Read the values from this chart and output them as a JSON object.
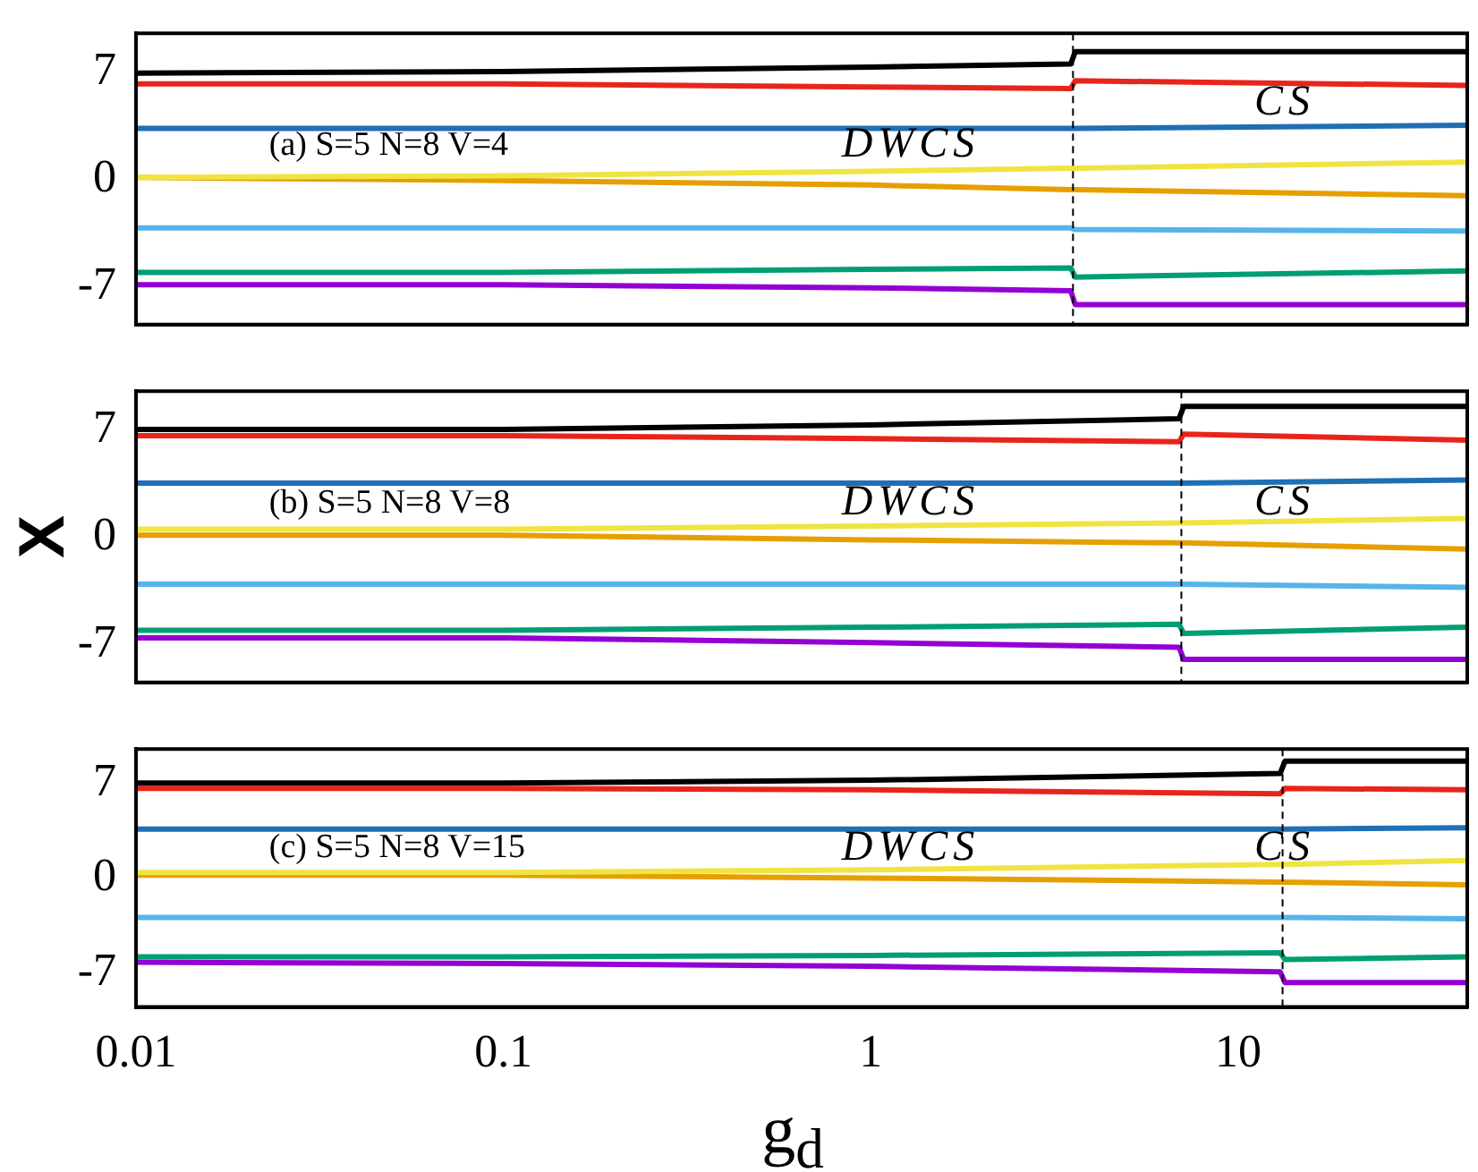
{
  "chart_data": [
    {
      "type": "line",
      "xlim": [
        0.01,
        42
      ],
      "ylim": [
        -9.5,
        9.5
      ],
      "yticks": [
        -7,
        0,
        7
      ],
      "log": "x",
      "grid": false,
      "legend": false,
      "marker": "none",
      "line_style": "solid",
      "tick_labels": "y",
      "series": [
        {
          "color": "#000000",
          "x": [
            0.01,
            0.1,
            1,
            3.5,
            3.6,
            42
          ],
          "values": [
            6.9,
            7.0,
            7.3,
            7.5,
            8.3,
            8.3
          ]
        },
        {
          "color": "#e8251b",
          "x": [
            0.01,
            0.1,
            1,
            3.5,
            3.6,
            42
          ],
          "values": [
            6.2,
            6.2,
            6.0,
            5.9,
            6.4,
            6.1
          ]
        },
        {
          "color": "#1f6fb4",
          "x": [
            0.01,
            0.1,
            1,
            3.5,
            3.6,
            42
          ],
          "values": [
            3.3,
            3.3,
            3.3,
            3.3,
            3.3,
            3.5
          ]
        },
        {
          "color": "#f0e442",
          "x": [
            0.01,
            0.1,
            1,
            3.5,
            3.6,
            42
          ],
          "values": [
            0.1,
            0.2,
            0.5,
            0.7,
            0.7,
            1.1
          ]
        },
        {
          "color": "#e69f00",
          "x": [
            0.01,
            0.1,
            1,
            3.5,
            3.6,
            42
          ],
          "values": [
            0.1,
            -0.1,
            -0.4,
            -0.7,
            -0.7,
            -1.1
          ]
        },
        {
          "color": "#56b4e9",
          "x": [
            0.01,
            0.1,
            1,
            3.5,
            3.6,
            42
          ],
          "values": [
            -3.2,
            -3.2,
            -3.2,
            -3.2,
            -3.3,
            -3.4
          ]
        },
        {
          "color": "#009e73",
          "x": [
            0.01,
            0.1,
            1,
            3.5,
            3.6,
            42
          ],
          "values": [
            -6.1,
            -6.1,
            -5.9,
            -5.8,
            -6.4,
            -6.0
          ]
        },
        {
          "color": "#9400d3",
          "x": [
            0.01,
            0.1,
            1,
            3.5,
            3.6,
            42
          ],
          "values": [
            -6.9,
            -6.9,
            -7.1,
            -7.3,
            -8.2,
            -8.2
          ]
        }
      ],
      "ref_lines": [
        {
          "axis": "x",
          "value": 3.55,
          "color": "#000000",
          "line_style": "dashed"
        }
      ],
      "annotations": [
        "(a) S=5 N=8 V=4",
        "DWCS",
        "CS"
      ]
    },
    {
      "type": "line",
      "xlim": [
        0.01,
        42
      ],
      "ylim": [
        -9.5,
        9.5
      ],
      "yticks": [
        -7,
        0,
        7
      ],
      "log": "x",
      "grid": false,
      "legend": false,
      "marker": "none",
      "line_style": "solid",
      "tick_labels": "y",
      "ylabel": "X",
      "series": [
        {
          "color": "#000000",
          "x": [
            0.01,
            0.1,
            1,
            6.9,
            7.1,
            42
          ],
          "values": [
            7.0,
            7.0,
            7.3,
            7.7,
            8.5,
            8.5
          ]
        },
        {
          "color": "#e8251b",
          "x": [
            0.01,
            0.1,
            1,
            6.9,
            7.1,
            42
          ],
          "values": [
            6.6,
            6.6,
            6.4,
            6.2,
            6.7,
            6.3
          ]
        },
        {
          "color": "#1f6fb4",
          "x": [
            0.01,
            0.1,
            1,
            6.9,
            7.1,
            42
          ],
          "values": [
            3.5,
            3.5,
            3.5,
            3.5,
            3.5,
            3.7
          ]
        },
        {
          "color": "#f0e442",
          "x": [
            0.01,
            0.1,
            1,
            6.9,
            7.1,
            42
          ],
          "values": [
            0.5,
            0.5,
            0.7,
            0.9,
            0.9,
            1.2
          ]
        },
        {
          "color": "#e69f00",
          "x": [
            0.01,
            0.1,
            1,
            6.9,
            7.1,
            42
          ],
          "values": [
            0.1,
            0.1,
            -0.2,
            -0.4,
            -0.4,
            -0.8
          ]
        },
        {
          "color": "#56b4e9",
          "x": [
            0.01,
            0.1,
            1,
            6.9,
            7.1,
            42
          ],
          "values": [
            -3.1,
            -3.1,
            -3.1,
            -3.1,
            -3.1,
            -3.3
          ]
        },
        {
          "color": "#009e73",
          "x": [
            0.01,
            0.1,
            1,
            6.9,
            7.1,
            42
          ],
          "values": [
            -6.1,
            -6.1,
            -5.9,
            -5.7,
            -6.3,
            -5.9
          ]
        },
        {
          "color": "#9400d3",
          "x": [
            0.01,
            0.1,
            1,
            6.9,
            7.1,
            42
          ],
          "values": [
            -6.6,
            -6.6,
            -6.9,
            -7.2,
            -8.0,
            -8.0
          ]
        }
      ],
      "ref_lines": [
        {
          "axis": "x",
          "value": 7,
          "color": "#000000",
          "line_style": "dashed"
        }
      ],
      "annotations": [
        "(b) S=5 N=8 V=8",
        "DWCS",
        "CS"
      ]
    },
    {
      "type": "line",
      "xlim": [
        0.01,
        42
      ],
      "ylim": [
        -9.5,
        9.5
      ],
      "yticks": [
        -7,
        0,
        7
      ],
      "xticks": [
        0.01,
        0.1,
        1,
        10
      ],
      "log": "x",
      "grid": false,
      "legend": false,
      "marker": "none",
      "line_style": "solid",
      "xlabel": "g$_{d}$",
      "series": [
        {
          "color": "#000000",
          "x": [
            0.01,
            0.1,
            1,
            13,
            13.4,
            42
          ],
          "values": [
            7.0,
            7.0,
            7.2,
            7.7,
            8.6,
            8.6
          ]
        },
        {
          "color": "#e8251b",
          "x": [
            0.01,
            0.1,
            1,
            13,
            13.4,
            42
          ],
          "values": [
            6.6,
            6.6,
            6.5,
            6.2,
            6.6,
            6.5
          ]
        },
        {
          "color": "#1f6fb4",
          "x": [
            0.01,
            0.1,
            1,
            13,
            13.4,
            42
          ],
          "values": [
            3.6,
            3.6,
            3.6,
            3.6,
            3.6,
            3.7
          ]
        },
        {
          "color": "#f0e442",
          "x": [
            0.01,
            0.1,
            1,
            13,
            13.4,
            42
          ],
          "values": [
            0.4,
            0.4,
            0.6,
            1.0,
            1.0,
            1.3
          ]
        },
        {
          "color": "#e69f00",
          "x": [
            0.01,
            0.1,
            1,
            13,
            13.4,
            42
          ],
          "values": [
            0.2,
            0.2,
            0.0,
            -0.3,
            -0.3,
            -0.5
          ]
        },
        {
          "color": "#56b4e9",
          "x": [
            0.01,
            0.1,
            1,
            13,
            13.4,
            42
          ],
          "values": [
            -2.9,
            -2.9,
            -2.9,
            -2.9,
            -2.9,
            -3.0
          ]
        },
        {
          "color": "#009e73",
          "x": [
            0.01,
            0.1,
            1,
            13,
            13.4,
            42
          ],
          "values": [
            -5.8,
            -5.8,
            -5.7,
            -5.5,
            -6.0,
            -5.8
          ]
        },
        {
          "color": "#9400d3",
          "x": [
            0.01,
            0.1,
            1,
            13,
            13.4,
            42
          ],
          "values": [
            -6.2,
            -6.3,
            -6.5,
            -6.9,
            -7.7,
            -7.7
          ]
        }
      ],
      "ref_lines": [
        {
          "axis": "x",
          "value": 13.2,
          "color": "#000000",
          "line_style": "dashed"
        }
      ],
      "annotations": [
        "(c) S=5 N=8 V=15",
        "DWCS",
        "CS"
      ]
    }
  ]
}
